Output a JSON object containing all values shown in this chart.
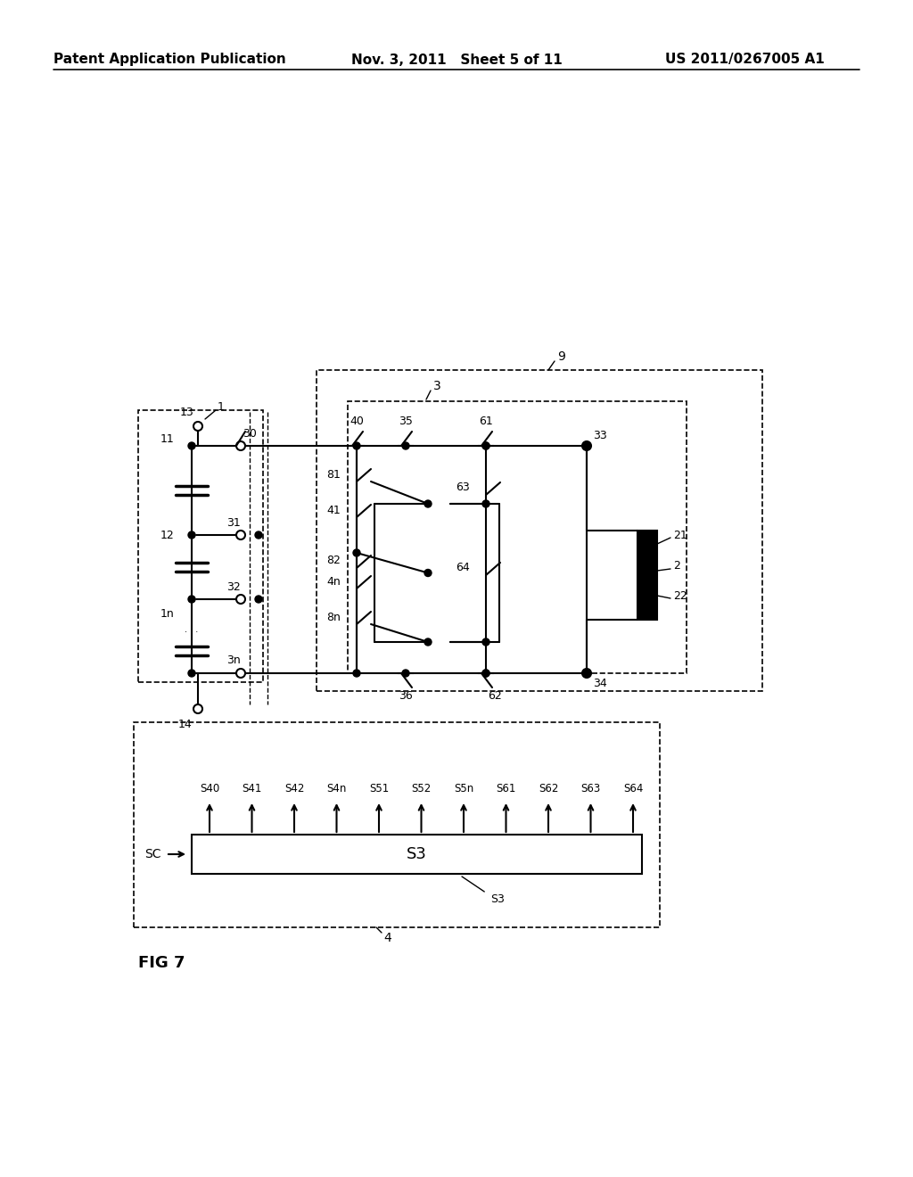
{
  "fig_width": 10.24,
  "fig_height": 13.2,
  "bg": "#ffffff",
  "header_left": "Patent Application Publication",
  "header_mid": "Nov. 3, 2011   Sheet 5 of 11",
  "header_right": "US 2011/0267005 A1",
  "fig_label": "FIG 7",
  "signals": [
    "S40",
    "S41",
    "S42",
    "S4n",
    "S51",
    "S52",
    "S5n",
    "S61",
    "S62",
    "S63",
    "S64"
  ]
}
